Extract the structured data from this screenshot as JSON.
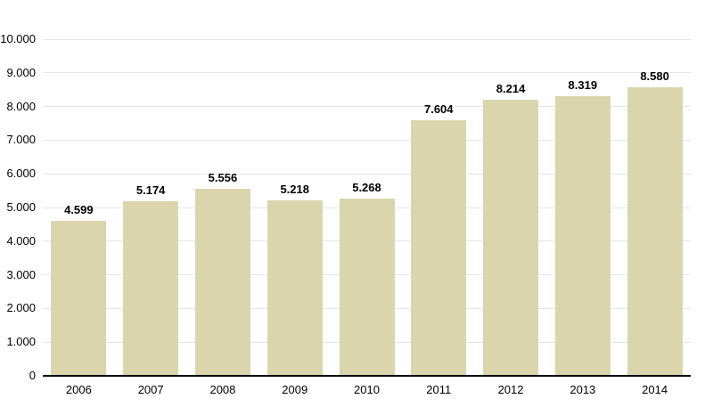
{
  "chart_data": {
    "type": "bar",
    "title": "",
    "xlabel": "",
    "ylabel": "",
    "categories": [
      "2006",
      "2007",
      "2008",
      "2009",
      "2010",
      "2011",
      "2012",
      "2013",
      "2014"
    ],
    "values": [
      4599,
      5174,
      5556,
      5218,
      5268,
      7604,
      8214,
      8319,
      8580
    ],
    "value_labels": [
      "4.599",
      "5.174",
      "5.556",
      "5.218",
      "5.268",
      "7.604",
      "8.214",
      "8.319",
      "8.580"
    ],
    "ylim": [
      0,
      10000
    ],
    "ytick_step": 1000,
    "ytick_labels_top_to_bottom": [
      "10.000",
      "9.000",
      "8.000",
      "7.000",
      "6.000",
      "5.000",
      "4.000",
      "3.000",
      "2.000",
      "1.000",
      "0"
    ],
    "grid": true,
    "legend": false,
    "colors": {
      "bar": "#dbd5ad",
      "gridline": "#e6e6e6",
      "axis": "#000000",
      "text": "#000000",
      "background": "#ffffff"
    }
  }
}
